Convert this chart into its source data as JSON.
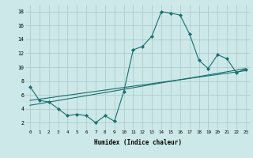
{
  "xlabel": "Humidex (Indice chaleur)",
  "bg_color": "#cce8e8",
  "grid_color": "#aac8c8",
  "line_color": "#1a6e6e",
  "xlim": [
    -0.5,
    23.5
  ],
  "ylim": [
    1.0,
    19.0
  ],
  "xticks": [
    0,
    1,
    2,
    3,
    4,
    5,
    6,
    7,
    8,
    9,
    10,
    11,
    12,
    13,
    14,
    15,
    16,
    17,
    18,
    19,
    20,
    21,
    22,
    23
  ],
  "yticks": [
    2,
    4,
    6,
    8,
    10,
    12,
    14,
    16,
    18
  ],
  "series1_x": [
    0,
    1,
    2,
    3,
    4,
    5,
    6,
    7,
    8,
    9,
    10,
    11,
    12,
    13,
    14,
    15,
    16,
    17,
    18,
    19,
    20,
    21,
    22,
    23
  ],
  "series1_y": [
    7.2,
    5.2,
    5.0,
    4.0,
    3.0,
    3.2,
    3.0,
    2.0,
    3.0,
    2.2,
    6.5,
    12.5,
    13.0,
    14.5,
    18.0,
    17.8,
    17.5,
    14.8,
    11.0,
    9.8,
    11.8,
    11.2,
    9.2,
    9.7
  ],
  "series2_x": [
    0,
    23
  ],
  "series2_y": [
    5.2,
    9.5
  ],
  "series3_x": [
    0,
    23
  ],
  "series3_y": [
    4.5,
    9.8
  ],
  "marker_x": [
    0,
    1,
    2,
    3,
    4,
    5,
    6,
    7,
    8,
    9,
    10,
    11,
    12,
    13,
    14,
    15,
    16,
    17,
    18,
    19,
    20,
    21,
    22,
    23
  ],
  "marker_y": [
    7.2,
    5.2,
    5.0,
    4.0,
    3.0,
    3.2,
    3.0,
    2.0,
    3.0,
    2.2,
    6.5,
    12.5,
    13.0,
    14.5,
    18.0,
    17.8,
    17.5,
    14.8,
    11.0,
    9.8,
    11.8,
    11.2,
    9.2,
    9.7
  ]
}
